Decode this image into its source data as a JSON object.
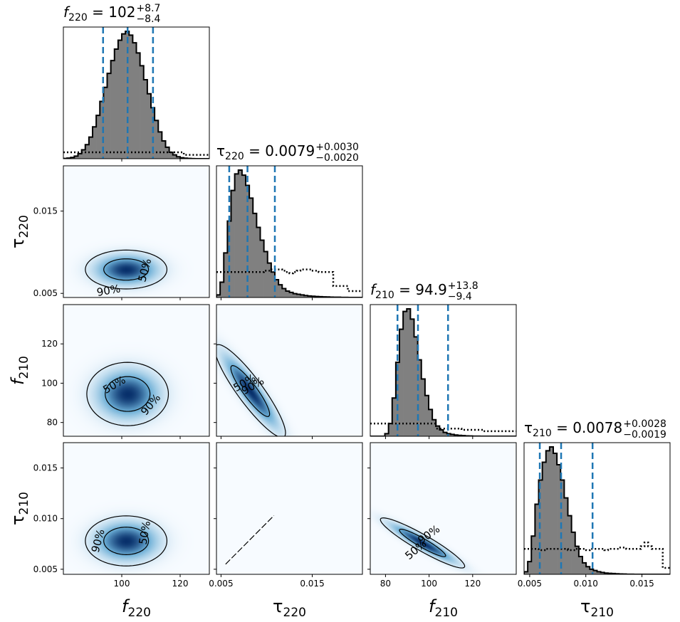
{
  "chart_data": {
    "type": "corner",
    "colors": {
      "histogram_fill": "#808080",
      "histogram_edge": "#000000",
      "quantile_lines": "#1f77b4",
      "prior": "#000000",
      "density_low": "#f7fbff",
      "density_high": "#08306b",
      "contour": "#000000"
    },
    "parameters": [
      {
        "name": "f220",
        "xlabel": "f",
        "sub": "220",
        "title_value": "102",
        "title_plus": "+8.7",
        "title_minus": "−8.4",
        "median": 102,
        "lower": 93.6,
        "upper": 110.7,
        "range": [
          80,
          130
        ],
        "ticks": [
          {
            "v": 100,
            "label": "100"
          },
          {
            "v": 120,
            "label": "120"
          }
        ],
        "ytick_labels": [],
        "hist": [
          0.002,
          0.005,
          0.01,
          0.02,
          0.04,
          0.07,
          0.11,
          0.17,
          0.25,
          0.34,
          0.45,
          0.56,
          0.67,
          0.77,
          0.86,
          0.93,
          0.98,
          1.0,
          0.97,
          0.91,
          0.83,
          0.73,
          0.62,
          0.51,
          0.4,
          0.3,
          0.21,
          0.14,
          0.09,
          0.05,
          0.03,
          0.015,
          0.008,
          0.004,
          0.002,
          0.001,
          0.0,
          0.0,
          0.0,
          0.0
        ],
        "prior": [
          0.05,
          0.05,
          0.05,
          0.05,
          0.05,
          0.05,
          0.05,
          0.05,
          0.05,
          0.05,
          0.05,
          0.05,
          0.05,
          0.05,
          0.05,
          0.05,
          0.05,
          0.05,
          0.05,
          0.05,
          0.05,
          0.05,
          0.05,
          0.05,
          0.05,
          0.05,
          0.05,
          0.05,
          0.05,
          0.05,
          0.05,
          0.05,
          0.05,
          0.03,
          0.03,
          0.03,
          0.03,
          0.03,
          0.03,
          0.03
        ]
      },
      {
        "name": "tau220",
        "xlabel": "τ",
        "sub": "220",
        "title_value": "0.0079",
        "title_plus": "+0.0030",
        "title_minus": "−0.0020",
        "median": 0.0079,
        "lower": 0.0059,
        "upper": 0.0109,
        "range": [
          0.0045,
          0.0205
        ],
        "ticks": [
          {
            "v": 0.005,
            "label": "0.005"
          },
          {
            "v": 0.015,
            "label": "0.015"
          }
        ],
        "ytick_labels": [
          {
            "v": 0.005,
            "label": "0.005"
          },
          {
            "v": 0.015,
            "label": "0.015"
          }
        ],
        "hist": [
          0.02,
          0.12,
          0.35,
          0.6,
          0.84,
          0.97,
          1.0,
          0.96,
          0.88,
          0.78,
          0.66,
          0.55,
          0.45,
          0.36,
          0.27,
          0.2,
          0.14,
          0.1,
          0.07,
          0.05,
          0.04,
          0.03,
          0.025,
          0.02,
          0.015,
          0.012,
          0.01,
          0.008,
          0.006,
          0.005,
          0.004,
          0.003,
          0.002,
          0.002,
          0.001,
          0.001,
          0.0,
          0.0,
          0.0,
          0.0
        ],
        "prior": [
          0.2,
          0.2,
          0.2,
          0.2,
          0.2,
          0.2,
          0.2,
          0.2,
          0.2,
          0.2,
          0.2,
          0.2,
          0.2,
          0.21,
          0.21,
          0.22,
          0.22,
          0.22,
          0.21,
          0.2,
          0.19,
          0.2,
          0.21,
          0.22,
          0.22,
          0.22,
          0.21,
          0.21,
          0.2,
          0.2,
          0.2,
          0.2,
          0.09,
          0.09,
          0.09,
          0.09,
          0.05,
          0.05,
          0.05,
          0.05
        ]
      },
      {
        "name": "f210",
        "xlabel": "f",
        "sub": "210",
        "title_value": "94.9",
        "title_plus": "+13.8",
        "title_minus": "−9.4",
        "median": 94.9,
        "lower": 85.5,
        "upper": 108.7,
        "range": [
          73,
          140
        ],
        "ticks": [
          {
            "v": 80,
            "label": "80"
          },
          {
            "v": 100,
            "label": "100"
          },
          {
            "v": 120,
            "label": "120"
          }
        ],
        "ytick_labels": [
          {
            "v": 80,
            "label": "80"
          },
          {
            "v": 100,
            "label": "100"
          },
          {
            "v": 120,
            "label": "120"
          }
        ],
        "hist": [
          0.0,
          0.0,
          0.0,
          0.0,
          0.02,
          0.1,
          0.3,
          0.58,
          0.84,
          0.98,
          1.0,
          0.92,
          0.78,
          0.6,
          0.45,
          0.32,
          0.21,
          0.13,
          0.08,
          0.05,
          0.03,
          0.02,
          0.015,
          0.01,
          0.007,
          0.005,
          0.003,
          0.002,
          0.001,
          0.001,
          0.0,
          0.0,
          0.0,
          0.0,
          0.0,
          0.0,
          0.0,
          0.0,
          0.0,
          0.0
        ],
        "prior": [
          0.1,
          0.1,
          0.1,
          0.1,
          0.1,
          0.1,
          0.1,
          0.1,
          0.1,
          0.1,
          0.1,
          0.1,
          0.1,
          0.1,
          0.1,
          0.1,
          0.1,
          0.1,
          0.06,
          0.06,
          0.06,
          0.06,
          0.06,
          0.06,
          0.06,
          0.05,
          0.05,
          0.05,
          0.05,
          0.05,
          0.05,
          0.04,
          0.04,
          0.04,
          0.04,
          0.04,
          0.04,
          0.04,
          0.04,
          0.04
        ]
      },
      {
        "name": "tau210",
        "xlabel": "τ",
        "sub": "210",
        "title_value": "0.0078",
        "title_plus": "+0.0028",
        "title_minus": "−0.0019",
        "median": 0.0078,
        "lower": 0.0059,
        "upper": 0.0106,
        "range": [
          0.0045,
          0.0175
        ],
        "ticks": [
          {
            "v": 0.005,
            "label": "0.005"
          },
          {
            "v": 0.01,
            "label": "0.010"
          },
          {
            "v": 0.015,
            "label": "0.015"
          }
        ],
        "ytick_labels": [
          {
            "v": 0.005,
            "label": "0.005"
          },
          {
            "v": 0.01,
            "label": "0.010"
          },
          {
            "v": 0.015,
            "label": "0.015"
          }
        ],
        "hist": [
          0.02,
          0.1,
          0.3,
          0.55,
          0.74,
          0.88,
          0.97,
          1.0,
          0.95,
          0.86,
          0.74,
          0.6,
          0.46,
          0.33,
          0.22,
          0.14,
          0.09,
          0.06,
          0.04,
          0.03,
          0.02,
          0.015,
          0.01,
          0.008,
          0.006,
          0.004,
          0.003,
          0.002,
          0.001,
          0.001,
          0.0,
          0.0,
          0.0,
          0.0,
          0.0,
          0.0,
          0.0,
          0.0,
          0.0,
          0.0
        ],
        "prior": [
          0.2,
          0.2,
          0.2,
          0.2,
          0.19,
          0.19,
          0.2,
          0.2,
          0.2,
          0.2,
          0.2,
          0.2,
          0.19,
          0.19,
          0.2,
          0.2,
          0.2,
          0.19,
          0.2,
          0.2,
          0.2,
          0.2,
          0.19,
          0.2,
          0.2,
          0.2,
          0.21,
          0.21,
          0.2,
          0.2,
          0.2,
          0.2,
          0.22,
          0.25,
          0.22,
          0.2,
          0.2,
          0.2,
          0.05,
          0.05
        ]
      }
    ],
    "pairs": [
      {
        "x": "f220",
        "y": "tau220",
        "cx": 101.5,
        "cy": 0.0079,
        "sx": 6.5,
        "sy": 0.0011,
        "rho": 0.0,
        "labels": [
          {
            "text": "90%",
            "x": 95.5,
            "y": 0.0053,
            "rot": -10
          },
          {
            "text": "50%",
            "x": 108,
            "y": 0.0078,
            "rot": -75
          }
        ]
      },
      {
        "x": "f220",
        "y": "f210",
        "cx": 102,
        "cy": 94.5,
        "sx": 6.5,
        "sy": 7.5,
        "rho": 0.0,
        "labels": [
          {
            "text": "50%",
            "x": 97.5,
            "y": 99,
            "rot": -30
          },
          {
            "text": "90%",
            "x": 110,
            "y": 89,
            "rot": -50
          }
        ]
      },
      {
        "x": "tau220",
        "y": "f210",
        "cx": 0.0082,
        "cy": 96,
        "sx": 0.0018,
        "sy": 11,
        "rho": -0.9,
        "labels": [
          {
            "text": "50%",
            "x": 0.0076,
            "y": 100,
            "rot": -30
          },
          {
            "text": "90%",
            "x": 0.0085,
            "y": 98.5,
            "rot": -30
          }
        ]
      },
      {
        "x": "f220",
        "y": "tau210",
        "cx": 101.5,
        "cy": 0.0078,
        "sx": 6.5,
        "sy": 0.00115,
        "rho": 0.0,
        "labels": [
          {
            "text": "90%",
            "x": 92,
            "y": 0.0078,
            "rot": -75
          },
          {
            "text": "50%",
            "x": 108,
            "y": 0.0086,
            "rot": -80
          }
        ]
      },
      {
        "x": "tau220",
        "y": "tau210",
        "line": true,
        "x0": 0.0055,
        "y0": 0.0055,
        "x1": 0.0108,
        "y1": 0.0103
      },
      {
        "x": "f210",
        "y": "tau210",
        "cx": 97,
        "cy": 0.0076,
        "sx": 9,
        "sy": 0.00115,
        "rho": -0.93,
        "labels": [
          {
            "text": "90%",
            "x": 100,
            "y": 0.0084,
            "rot": -35
          },
          {
            "text": "50%",
            "x": 94,
            "y": 0.0069,
            "rot": -40
          }
        ]
      }
    ]
  }
}
